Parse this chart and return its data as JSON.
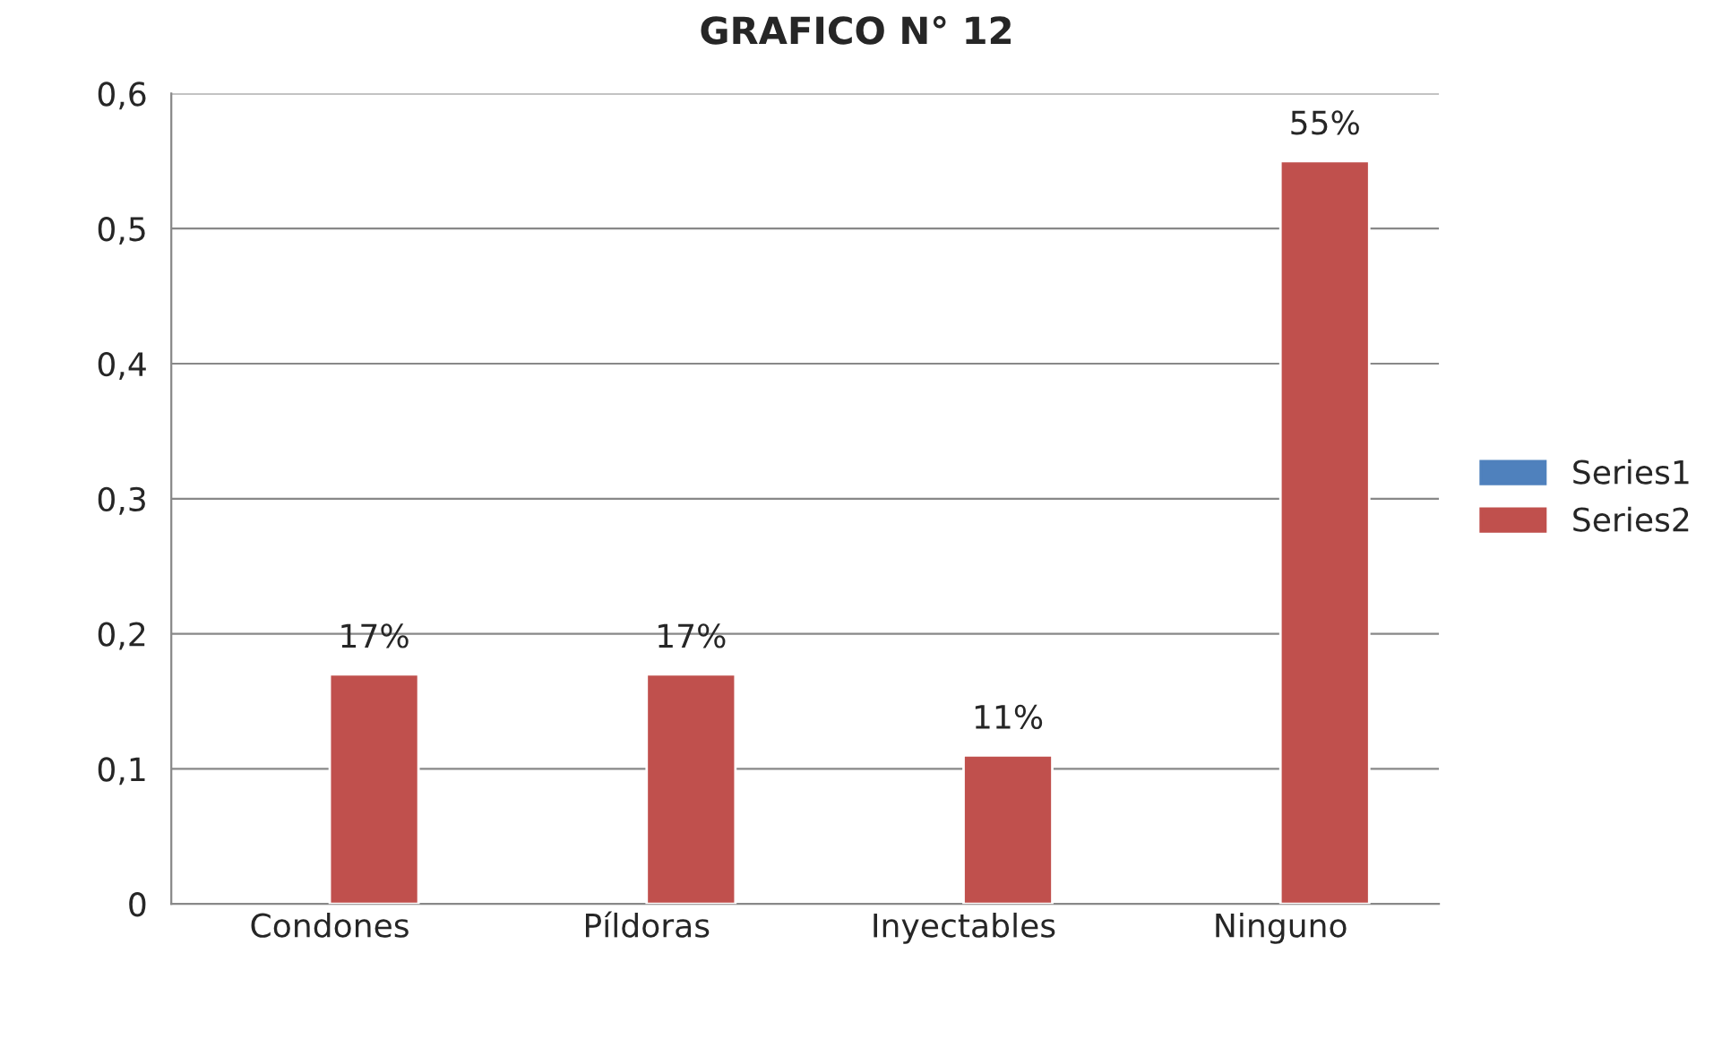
{
  "chart_data": {
    "type": "bar",
    "title": "GRAFICO N° 12",
    "categories": [
      "Condones",
      "Píldoras",
      "Inyectables",
      "Ninguno"
    ],
    "series": [
      {
        "name": "Series1",
        "color": "#4f81bd",
        "values": [
          null,
          null,
          null,
          null
        ]
      },
      {
        "name": "Series2",
        "color": "#c0504d",
        "values": [
          0.17,
          0.17,
          0.11,
          0.55
        ],
        "value_labels": [
          "17%",
          "17%",
          "11%",
          "55%"
        ]
      }
    ],
    "ylim": [
      0,
      0.6
    ],
    "yticks": [
      {
        "value": 0,
        "label": "0"
      },
      {
        "value": 0.1,
        "label": "0,1"
      },
      {
        "value": 0.2,
        "label": "0,2"
      },
      {
        "value": 0.3,
        "label": "0,3"
      },
      {
        "value": 0.4,
        "label": "0,4"
      },
      {
        "value": 0.5,
        "label": "0,5"
      },
      {
        "value": 0.6,
        "label": "0,6"
      }
    ],
    "grid": "y",
    "legend": "right"
  }
}
